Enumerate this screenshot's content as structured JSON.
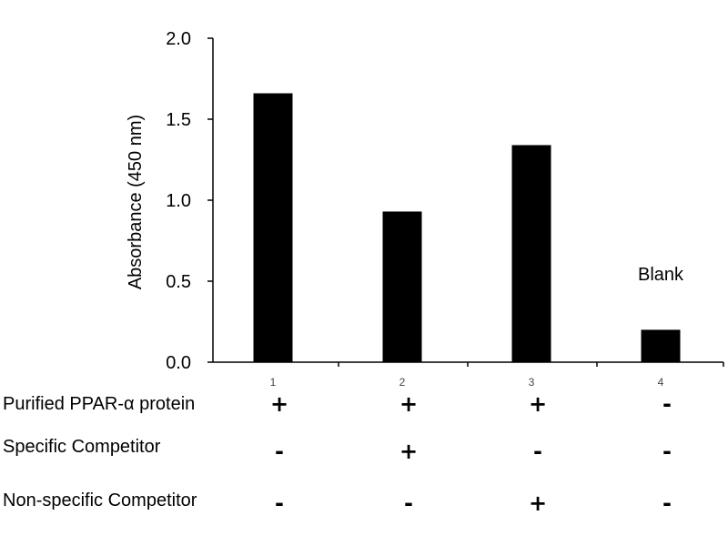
{
  "chart_data": {
    "type": "bar",
    "categories": [
      "1",
      "2",
      "3",
      "4"
    ],
    "values": [
      1.66,
      0.93,
      1.34,
      0.2
    ],
    "ylabel": "Absorbance (450 nm)",
    "xlabel": "",
    "ylim": [
      0,
      2.0
    ],
    "yticks": [
      "0.0",
      "0.5",
      "1.0",
      "1.5",
      "2.0"
    ],
    "grid": false,
    "bar_color": "#000000",
    "annotations": [
      {
        "category": "4",
        "text": "Blank"
      }
    ],
    "conditions": [
      {
        "label": "Purified PPAR-α protein",
        "marks": [
          "+",
          "+",
          "+",
          "-"
        ]
      },
      {
        "label": "Specific Competitor",
        "marks": [
          "-",
          "+",
          "-",
          "-"
        ]
      },
      {
        "label": "Non-specific Competitor",
        "marks": [
          "-",
          "-",
          "+",
          "-"
        ]
      }
    ]
  }
}
